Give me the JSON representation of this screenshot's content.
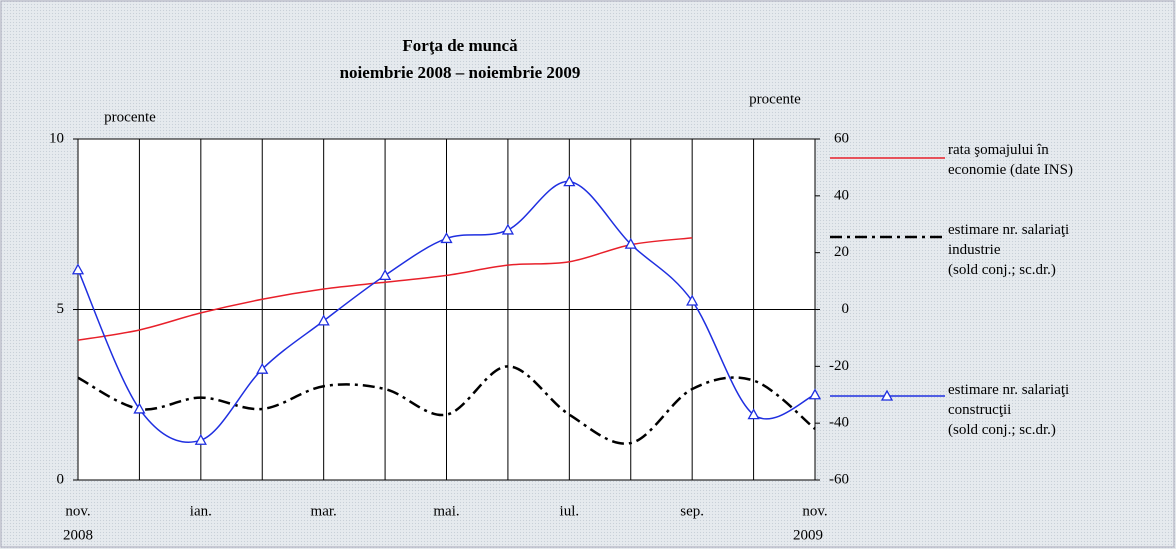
{
  "chart_data": {
    "type": "line",
    "title": "Forţa de muncă",
    "subtitle": "noiembrie 2008 – noiembrie 2009",
    "y_label": "procente",
    "y2_label": "procente",
    "categories": [
      "nov.",
      null,
      "ian.",
      null,
      "mar.",
      null,
      "mai.",
      null,
      "iul.",
      null,
      "sep.",
      null,
      "nov."
    ],
    "year_labels": [
      "2008",
      "2009"
    ],
    "ylim": [
      0,
      10
    ],
    "yticks": [
      0,
      5,
      10
    ],
    "y2lim": [
      -60,
      60
    ],
    "y2ticks": [
      -60,
      -40,
      -20,
      0,
      20,
      40,
      60
    ],
    "grid": true,
    "series": [
      {
        "name": "rata şomajului în\neconomie (date INS)",
        "color": "#e8202a",
        "style": "solid",
        "axis": "y",
        "values": [
          4.1,
          4.4,
          4.9,
          5.3,
          5.6,
          5.8,
          6.0,
          6.3,
          6.4,
          6.9,
          7.1,
          null,
          null
        ]
      },
      {
        "name": "estimare nr. salariaţi\nindustrie\n(sold conj.; sc.dr.)",
        "color": "#000000",
        "style": "dashdot",
        "axis": "y2",
        "values": [
          -24,
          -35,
          -31,
          -35,
          -27,
          -28,
          -37,
          -20,
          -37,
          -47,
          -28,
          -25,
          -42
        ]
      },
      {
        "name": "estimare nr. salariaţi\nconstrucţii\n(sold conj.; sc.dr.)",
        "color": "#1f2fe0",
        "style": "triangle",
        "axis": "y2",
        "values": [
          14,
          -35,
          -46,
          -21,
          -4,
          12,
          25,
          28,
          45,
          23,
          3,
          -37,
          -30
        ]
      }
    ]
  }
}
